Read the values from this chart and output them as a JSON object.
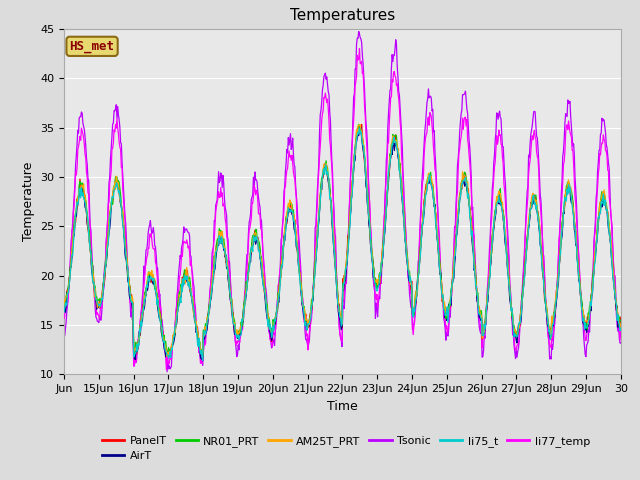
{
  "title": "Temperatures",
  "xlabel": "Time",
  "ylabel": "Temperature",
  "ylim": [
    10,
    45
  ],
  "xlim_start": 0,
  "xlim_end": 16,
  "x_tick_labels": [
    "Jun",
    "15Jun",
    "16Jun",
    "17Jun",
    "18Jun",
    "19Jun",
    "20Jun",
    "21Jun",
    "22Jun",
    "23Jun",
    "24Jun",
    "25Jun",
    "26Jun",
    "27Jun",
    "28Jun",
    "29Jun",
    "30"
  ],
  "annotation_text": "HS_met",
  "annotation_color": "#8B0000",
  "annotation_bg": "#E8D870",
  "background_color": "#E8E8E8",
  "series_colors": {
    "PanelT": "#FF0000",
    "AirT": "#00008B",
    "NR01_PRT": "#00CC00",
    "AM25T_PRT": "#FFA500",
    "Tsonic": "#BB00FF",
    "li75_t": "#00CCCC",
    "li77_temp": "#FF00FF"
  },
  "grid_color": "#FFFFFF",
  "title_fontsize": 11,
  "axis_fontsize": 9,
  "tick_fontsize": 8,
  "legend_fontsize": 8
}
